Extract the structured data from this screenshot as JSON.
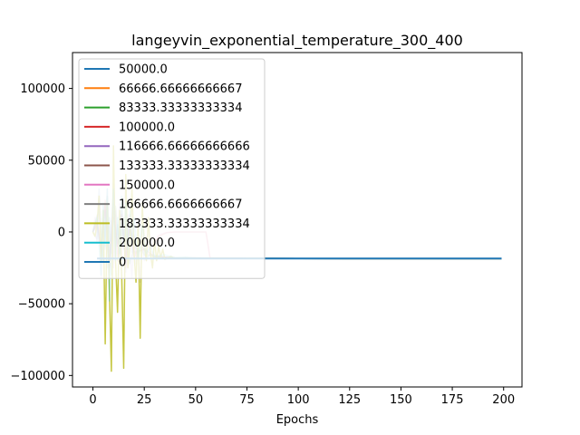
{
  "chart_data": {
    "type": "line",
    "title": "langeyvin_exponential_temperature_300_400",
    "xlabel": "Epochs",
    "ylabel": "",
    "xlim": [
      -9.95,
      208.95
    ],
    "ylim": [
      -108000,
      125000
    ],
    "xticks": [
      0,
      25,
      50,
      75,
      100,
      125,
      150,
      175,
      200
    ],
    "yticks": [
      -100000,
      -50000,
      0,
      50000,
      100000
    ],
    "ytick_labels": [
      "−100000",
      "−50000",
      "0",
      "50000",
      "100000"
    ],
    "grid": false,
    "legend": "upper-left",
    "series": [
      {
        "name": "50000.0",
        "color": "#1f77b4",
        "alpha": 0.25,
        "x": [
          0,
          2,
          3,
          4,
          5,
          6,
          7,
          8,
          9,
          10,
          11,
          12,
          13,
          14,
          15,
          16,
          17,
          18,
          19,
          20,
          22,
          24,
          26,
          28,
          30,
          35,
          40,
          50,
          60,
          80,
          100,
          150,
          199
        ],
        "y": [
          0,
          -5000,
          30000,
          5000,
          -20000,
          15000,
          -25000,
          10000,
          -15000,
          20000,
          -10000,
          5000,
          -18000,
          8000,
          -12000,
          3000,
          -16000,
          6000,
          -14000,
          -2000,
          -17000,
          -8000,
          -19000,
          -15000,
          -18000,
          -17500,
          -18500,
          -18000,
          -18200,
          -18300,
          -18400,
          -18500,
          -18600
        ]
      },
      {
        "name": "66666.66666666667",
        "color": "#ff7f0e",
        "alpha": 0.25,
        "x": [
          0,
          2,
          4,
          6,
          8,
          10,
          12,
          14,
          16,
          18,
          20,
          25,
          30,
          40,
          60,
          100,
          199
        ],
        "y": [
          0,
          8000,
          -12000,
          20000,
          -25000,
          15000,
          -10000,
          12000,
          -20000,
          5000,
          -15000,
          -12000,
          -17000,
          -18000,
          -18300,
          -18500,
          -18600
        ]
      },
      {
        "name": "83333.33333333334",
        "color": "#2ca02c",
        "alpha": 0.25,
        "x": [
          0,
          3,
          5,
          7,
          9,
          11,
          13,
          15,
          18,
          21,
          25,
          30,
          40,
          60,
          100,
          199
        ],
        "y": [
          0,
          15000,
          -20000,
          25000,
          -30000,
          18000,
          -15000,
          10000,
          -22000,
          -5000,
          -16000,
          -17500,
          -18000,
          -18300,
          -18500,
          -18600
        ]
      },
      {
        "name": "100000.0",
        "color": "#d62728",
        "alpha": 0.25,
        "x": [
          0,
          2,
          4,
          6,
          8,
          10,
          12,
          14,
          16,
          18,
          20,
          24,
          28,
          32,
          36,
          40,
          44,
          48,
          52,
          55,
          56,
          57,
          60,
          70,
          100,
          199
        ],
        "y": [
          0,
          6000,
          -15000,
          22000,
          -28000,
          30000,
          -20000,
          15000,
          -25000,
          12000,
          -18000,
          -5000,
          -12000,
          -3000,
          -500,
          0,
          0,
          0,
          0,
          0,
          -8000,
          -18000,
          -18200,
          -18400,
          -18500,
          -18600
        ]
      },
      {
        "name": "116666.66666666666",
        "color": "#9467bd",
        "alpha": 0.25,
        "x": [
          0,
          1,
          2,
          3,
          4,
          5,
          6,
          7,
          8,
          9,
          10,
          11,
          12,
          13,
          14,
          15,
          16,
          17,
          18,
          19,
          20,
          21,
          22,
          23,
          24,
          25,
          27,
          30,
          35,
          40,
          60,
          100,
          199
        ],
        "y": [
          0,
          10000,
          -8000,
          25000,
          -32000,
          18000,
          -12000,
          30000,
          -20000,
          8000,
          -25000,
          15000,
          -10000,
          20000,
          -18000,
          5000,
          -28000,
          12000,
          -15000,
          -32000,
          8000,
          -22000,
          -12000,
          -35000,
          -5000,
          -20000,
          -12000,
          -16000,
          -17500,
          -18000,
          -18300,
          -18500,
          -18600
        ]
      },
      {
        "name": "133333.33333333334",
        "color": "#8c564b",
        "alpha": 0.25,
        "x": [
          0,
          2,
          4,
          6,
          8,
          10,
          12,
          14,
          16,
          18,
          20,
          23,
          26,
          30,
          40,
          60,
          100,
          199
        ],
        "y": [
          0,
          5000,
          -10000,
          15000,
          -18000,
          10000,
          -8000,
          12000,
          -15000,
          6000,
          -12000,
          -8000,
          -15000,
          -17000,
          -18000,
          -18300,
          -18500,
          -18600
        ]
      },
      {
        "name": "150000.0",
        "color": "#e377c2",
        "alpha": 0.25,
        "x": [
          0,
          2,
          4,
          6,
          8,
          10,
          12,
          14,
          16,
          18,
          20,
          24,
          28,
          32,
          36,
          40,
          44,
          48,
          52,
          55,
          56,
          57,
          60,
          70,
          100,
          199
        ],
        "y": [
          0,
          8000,
          -12000,
          18000,
          -22000,
          25000,
          -15000,
          12000,
          -20000,
          10000,
          -15000,
          -3000,
          -10000,
          -2000,
          -300,
          0,
          0,
          0,
          0,
          0,
          -9000,
          -18000,
          -18200,
          -18400,
          -18500,
          -18600
        ]
      },
      {
        "name": "166666.6666666667",
        "color": "#7f7f7f",
        "alpha": 0.25,
        "x": [
          0,
          2,
          4,
          6,
          8,
          10,
          12,
          14,
          16,
          18,
          20,
          25,
          30,
          40,
          60,
          100,
          199
        ],
        "y": [
          0,
          12000,
          -16000,
          20000,
          -24000,
          14000,
          -10000,
          8000,
          -18000,
          4000,
          -14000,
          -12000,
          -17000,
          -18000,
          -18300,
          -18500,
          -18600
        ]
      },
      {
        "name": "183333.33333333334",
        "color": "#bcbd22",
        "alpha": 0.85,
        "x": [
          0,
          1,
          2,
          3,
          4,
          5,
          6,
          7,
          8,
          9,
          10,
          11,
          12,
          13,
          14,
          15,
          16,
          17,
          18,
          19,
          20,
          21,
          22,
          23,
          24,
          25,
          26,
          27,
          28,
          29,
          30,
          31,
          32,
          33,
          34,
          35,
          38,
          40,
          45,
          50,
          60,
          80,
          100,
          150,
          199
        ],
        "y": [
          0,
          -3000,
          5000,
          25000,
          -20000,
          15000,
          -78000,
          20000,
          -40000,
          -97000,
          60000,
          -20000,
          -56000,
          15000,
          -30000,
          -95000,
          40000,
          -25000,
          -10000,
          30000,
          -15000,
          -35000,
          5000,
          -74000,
          20000,
          -8000,
          -20000,
          10000,
          -15000,
          -25000,
          -5000,
          -20000,
          -10000,
          -18000,
          -12000,
          -19000,
          -17000,
          -18500,
          -18200,
          -18500,
          -18300,
          -18400,
          -18500,
          -18600,
          -18600
        ]
      },
      {
        "name": "200000.0",
        "color": "#17becf",
        "alpha": 0.3,
        "x": [
          0,
          2,
          4,
          5,
          6,
          7,
          8,
          9,
          10,
          11,
          12,
          13,
          14,
          15,
          16,
          17,
          18,
          19,
          20,
          22,
          24,
          26,
          28,
          30,
          35,
          40,
          45,
          50,
          60,
          80,
          100,
          150,
          199
        ],
        "y": [
          0,
          10000,
          -30000,
          20000,
          -10000,
          30000,
          -48000,
          5000,
          30000,
          -20000,
          10000,
          -15000,
          25000,
          -10000,
          20000,
          -12000,
          15000,
          -8000,
          10000,
          -18000,
          5000,
          -15000,
          -10000,
          -17000,
          -16000,
          -18000,
          -17500,
          -18200,
          -18300,
          -18400,
          -18500,
          -18600,
          -18600
        ]
      },
      {
        "name": "0",
        "color": "#1f77b4",
        "alpha": 1.0,
        "x": [
          2,
          5,
          8,
          10,
          12,
          15,
          20,
          25,
          30,
          40,
          50,
          60,
          80,
          100,
          120,
          150,
          170,
          180,
          199
        ],
        "y": [
          -18500,
          -18500,
          -18500,
          -18500,
          -18500,
          -18500,
          -18500,
          -18500,
          -18500,
          -18500,
          -18500,
          -18500,
          -18500,
          -18500,
          -18500,
          -18500,
          -18500,
          -18500,
          -18500
        ]
      }
    ]
  }
}
